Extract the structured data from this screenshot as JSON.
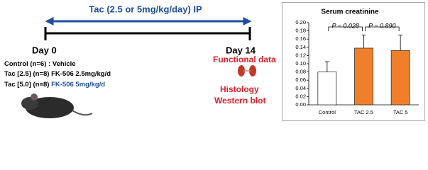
{
  "protocol": {
    "treatment": "Tac (2.5 or 5mg/kg/day) IP",
    "start": "Day 0",
    "end": "Day 14",
    "groups": [
      {
        "label": "Control (n=6)",
        "detail": ": Vehicle"
      },
      {
        "label": "Tac [2.5]  (n=8)",
        "detail": "FK-506 2.5mg/kg/d"
      },
      {
        "label": "Tac [5.0] (n=8)",
        "detail": "FK-506 5mg/kg/d"
      }
    ],
    "outcomes": [
      "Functional data",
      "Histology",
      "Western blot"
    ]
  },
  "chart_data": {
    "type": "bar",
    "title": "Serum creatinine",
    "categories": [
      "Control",
      "TAC 2.5",
      "TAC 5"
    ],
    "values": [
      0.08,
      0.138,
      0.132
    ],
    "errors": [
      0.025,
      0.032,
      0.038
    ],
    "colors": [
      "#ffffff",
      "#f07f2a",
      "#f07f2a"
    ],
    "ylim": [
      0,
      0.2
    ],
    "yticks": [
      {
        "value": 0,
        "label": "0.00"
      },
      0.02,
      0.04,
      0.06,
      0.08,
      {
        "value": 0.1,
        "label": "0.10"
      },
      0.12,
      0.14,
      0.16,
      0.18,
      {
        "value": 0.2,
        "label": "0.20"
      }
    ],
    "annotations": [
      "P = 0.028",
      "P = 0.890"
    ]
  }
}
